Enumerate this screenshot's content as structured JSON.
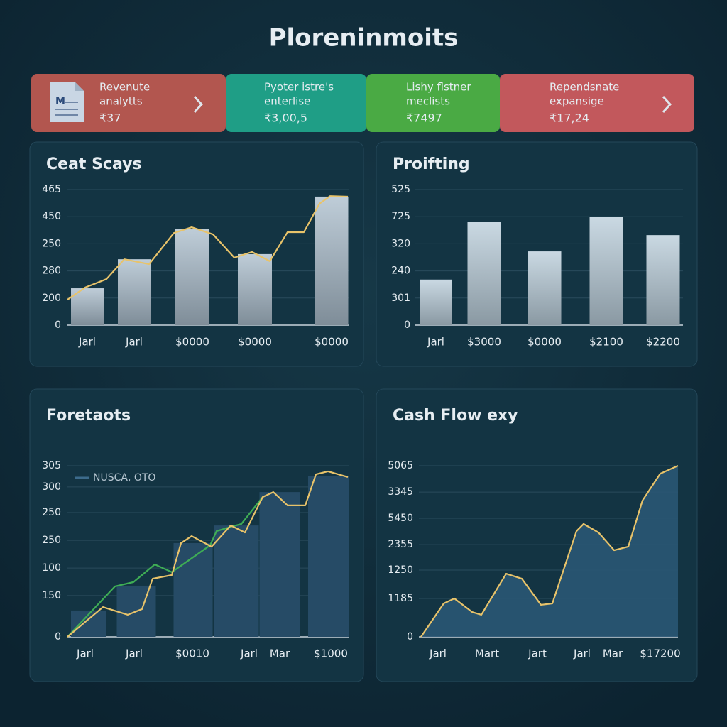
{
  "header": {
    "title": "Ploreninmoits"
  },
  "kpis": [
    {
      "lines": [
        "Revenute",
        "analytts"
      ],
      "value": "₹37",
      "color": "#b2564f"
    },
    {
      "lines": [
        "Pyoter istre's",
        "enterlise"
      ],
      "value": "₹3,00,5",
      "color": "#1f9e86"
    },
    {
      "lines": [
        "Lishy flstner",
        "meclists"
      ],
      "value": "₹7497",
      "color": "#4aaa44"
    },
    {
      "lines": [
        "Rependsnate",
        "expansige"
      ],
      "value": "₹17,24",
      "color": "#c2585c"
    }
  ],
  "panels": [
    {
      "title": "Ceat Scays",
      "ylim": [
        0,
        5
      ],
      "xlim": [
        0,
        397
      ],
      "yticks": [
        0,
        {
          "value": 1,
          "label": "200"
        },
        {
          "value": 2,
          "label": "280"
        },
        {
          "value": 3,
          "label": "250"
        },
        {
          "value": 4,
          "label": "450"
        },
        {
          "value": 5,
          "label": "465"
        }
      ],
      "categories": [
        "Jarl",
        "Jarl",
        "$0000",
        "$0000",
        "$0000"
      ],
      "bars": [
        1.36,
        2.43,
        3.56,
        2.62,
        4.74
      ],
      "bar_color": "#a9bccb",
      "series": [
        {
          "color": "#e8c36a",
          "x": [
            0,
            25,
            55,
            80,
            115,
            150,
            175,
            205,
            235,
            260,
            285,
            310,
            333,
            355,
            370,
            395
          ],
          "values": [
            0.94,
            1.39,
            1.7,
            2.43,
            2.25,
            3.4,
            3.61,
            3.35,
            2.49,
            2.7,
            2.36,
            3.43,
            3.43,
            4.48,
            4.76,
            4.74
          ]
        }
      ]
    },
    {
      "title": "Proifting",
      "ylim": [
        0,
        5
      ],
      "yticks": [
        0,
        {
          "value": 1,
          "label": "301"
        },
        {
          "value": 2,
          "label": "240"
        },
        {
          "value": 3,
          "label": "320"
        },
        {
          "value": 4,
          "label": "725"
        },
        {
          "value": 5,
          "label": "525"
        }
      ],
      "categories": [
        "Jarl",
        "$3000",
        "$0000",
        "$2100",
        "$2200"
      ],
      "bars": [
        1.68,
        3.8,
        2.72,
        3.98,
        3.32
      ],
      "bar_color": "#b8ccd9",
      "series": []
    },
    {
      "title": "Foretaots",
      "ylim": [
        0,
        100
      ],
      "xlim": [
        0,
        397
      ],
      "legend": "NUSCA, OTO",
      "yticks": [
        0,
        {
          "value": 24.1,
          "label": "150"
        },
        {
          "value": 40.2,
          "label": "100"
        },
        {
          "value": 56.4,
          "label": "250"
        },
        {
          "value": 72.6,
          "label": "250"
        },
        {
          "value": 87.6,
          "label": "300"
        },
        {
          "value": 100,
          "label": "305"
        }
      ],
      "categories": [
        "Jarl",
        "Jarl",
        "$0010",
        "Jarl",
        "Mar",
        "$1000"
      ],
      "bars": [
        15.4,
        29.9,
        54.8,
        65.1,
        84.6,
        94.2
      ],
      "bar_color": "#264b66",
      "series": [
        {
          "color": "#3fae55",
          "x": [
            0,
            33,
            67,
            93,
            123,
            147,
            201,
            210,
            230,
            245,
            275
          ],
          "values": [
            0,
            14.5,
            29.5,
            32,
            42.3,
            37.8,
            53.5,
            61.8,
            64.3,
            66,
            81.7
          ]
        },
        {
          "color": "#e8c36a",
          "x": [
            0,
            50,
            85,
            105,
            120,
            147,
            160,
            175,
            203,
            230,
            250,
            275,
            290,
            310,
            335,
            350,
            367,
            395
          ],
          "values": [
            0,
            17.4,
            12.9,
            16.2,
            34,
            36.1,
            54.8,
            58.9,
            52.7,
            65.1,
            61,
            81.7,
            84.6,
            76.8,
            76.8,
            95,
            96.7,
            93.4
          ]
        }
      ]
    },
    {
      "title": "Cash Flow exy",
      "ylim": [
        0,
        100
      ],
      "xlim": [
        0,
        365
      ],
      "area": true,
      "yticks": [
        0,
        {
          "value": 22.4,
          "label": "1185"
        },
        {
          "value": 39,
          "label": "1250"
        },
        {
          "value": 53.9,
          "label": "2355"
        },
        {
          "value": 69.3,
          "label": "5450"
        },
        {
          "value": 84.6,
          "label": "3345"
        },
        {
          "value": 100,
          "label": "5065"
        }
      ],
      "categories": [
        "Jarl",
        "Mart",
        "Jart",
        "Jarl",
        "Mar",
        "$17200"
      ],
      "bars": [],
      "series": [
        {
          "color": "#e8c36a",
          "x": [
            3,
            35,
            50,
            75,
            88,
            123,
            145,
            172,
            188,
            222,
            232,
            253,
            275,
            295,
            315,
            340,
            365
          ],
          "values": [
            0,
            19.5,
            22.4,
            14.5,
            12.9,
            36.9,
            34,
            18.7,
            19.5,
            61.8,
            66,
            61,
            50.6,
            52.7,
            79.7,
            95.4,
            100
          ]
        }
      ]
    }
  ]
}
